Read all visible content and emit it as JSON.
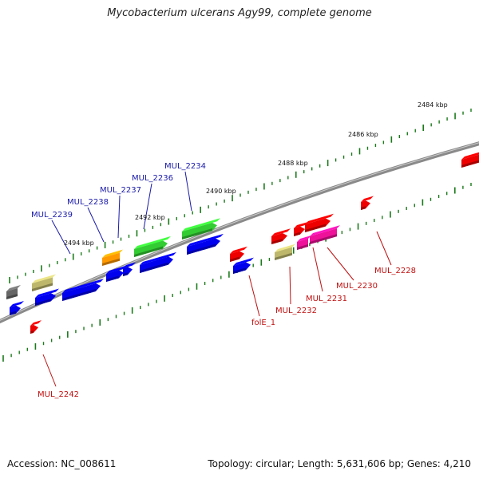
{
  "title": "Mycobacterium ulcerans Agy99, complete genome",
  "accession": "Accession: NC_008611",
  "summary": "Topology: circular; Length: 5,631,606 bp; Genes: 4,210",
  "colors": {
    "backbone": "#8a8a8a",
    "tick": "#1a7a1a",
    "blue": "#0000ee",
    "green": "#33cc33",
    "khaki": "#bdb76b",
    "orange": "#ff9900",
    "red": "#ee0000",
    "magenta": "#ee1199",
    "grey": "#666666",
    "label_blue": "#1a1aaa",
    "label_red": "#c01010"
  },
  "scale_labels": [
    {
      "text": "2484 kbp",
      "kbp": 2484
    },
    {
      "text": "2486 kbp",
      "kbp": 2486
    },
    {
      "text": "2488 kbp",
      "kbp": 2488
    },
    {
      "text": "2490 kbp",
      "kbp": 2490
    },
    {
      "text": "2492 kbp",
      "kbp": 2492
    },
    {
      "text": "2494 kbp",
      "kbp": 2494
    }
  ],
  "gene_labels_forward": [
    {
      "text": "MUL_2239"
    },
    {
      "text": "MUL_2238"
    },
    {
      "text": "MUL_2237"
    },
    {
      "text": "MUL_2236"
    },
    {
      "text": "MUL_2234"
    }
  ],
  "gene_labels_reverse": [
    {
      "text": "MUL_2242"
    },
    {
      "text": "folE_1"
    },
    {
      "text": "MUL_2232"
    },
    {
      "text": "MUL_2231"
    },
    {
      "text": "MUL_2230"
    },
    {
      "text": "MUL_2228"
    }
  ]
}
